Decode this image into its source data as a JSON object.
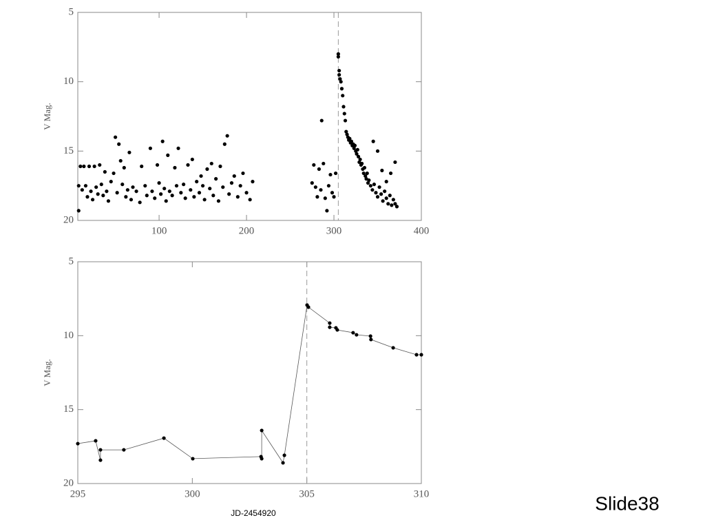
{
  "footer": "Slide38",
  "chart_data": [
    {
      "type": "scatter",
      "ylabel": "V Mag.",
      "color": "#000000",
      "vline": 305,
      "xlim": [
        7,
        400
      ],
      "xticks": [
        100,
        200,
        300,
        400
      ],
      "ylim": [
        20,
        5
      ],
      "yticks": [
        5,
        10,
        15,
        20
      ],
      "x": [
        8,
        8,
        10,
        12,
        14,
        16,
        18,
        20,
        22,
        24,
        26,
        28,
        30,
        32,
        34,
        36,
        38,
        40,
        42,
        45,
        48,
        50,
        52,
        54,
        56,
        58,
        60,
        62,
        64,
        66,
        68,
        70,
        74,
        78,
        80,
        84,
        86,
        90,
        92,
        95,
        98,
        100,
        102,
        104,
        106,
        108,
        110,
        112,
        115,
        118,
        120,
        122,
        125,
        128,
        130,
        133,
        136,
        138,
        140,
        143,
        146,
        148,
        150,
        152,
        155,
        158,
        160,
        162,
        165,
        168,
        170,
        173,
        175,
        178,
        180,
        183,
        186,
        190,
        193,
        196,
        200,
        204,
        207,
        275,
        277,
        279,
        281,
        283,
        285,
        286,
        288,
        290,
        292,
        294,
        296,
        298,
        300,
        302,
        305,
        305,
        306,
        306,
        307,
        308,
        309,
        310,
        311,
        312,
        313,
        314,
        315,
        316,
        317,
        318,
        319,
        320,
        321,
        322,
        323,
        324,
        325,
        326,
        327,
        328,
        329,
        330,
        331,
        332,
        333,
        334,
        335,
        336,
        337,
        338,
        339,
        340,
        342,
        344,
        346,
        348,
        350,
        352,
        354,
        356,
        358,
        360,
        362,
        364,
        366,
        368,
        370,
        372,
        345,
        350,
        355,
        365,
        370,
        360
      ],
      "values": [
        17.5,
        19.3,
        16.1,
        17.8,
        16.1,
        17.5,
        18.3,
        16.1,
        17.9,
        18.5,
        16.1,
        17.6,
        18.1,
        16.0,
        17.4,
        18.2,
        16.5,
        17.9,
        18.6,
        17.2,
        16.6,
        14.0,
        18.0,
        14.5,
        15.7,
        17.4,
        16.2,
        18.3,
        17.8,
        15.1,
        18.5,
        17.6,
        17.9,
        18.7,
        16.1,
        17.5,
        18.2,
        14.8,
        17.9,
        18.4,
        16.0,
        17.3,
        18.1,
        14.3,
        17.7,
        18.6,
        15.3,
        17.9,
        18.2,
        16.2,
        17.5,
        14.8,
        18.0,
        17.4,
        18.4,
        16.0,
        17.8,
        15.6,
        18.3,
        17.2,
        18.0,
        16.8,
        17.5,
        18.5,
        16.3,
        17.7,
        15.9,
        18.2,
        17.0,
        18.6,
        16.1,
        17.6,
        14.5,
        13.9,
        18.1,
        17.3,
        16.8,
        18.3,
        17.5,
        16.6,
        18.0,
        18.5,
        17.2,
        17.3,
        16.0,
        17.6,
        18.3,
        16.3,
        17.8,
        12.8,
        15.9,
        18.4,
        19.3,
        17.5,
        16.7,
        18.0,
        18.3,
        16.6,
        8.0,
        8.2,
        9.2,
        9.5,
        9.8,
        10.0,
        10.5,
        11.0,
        11.8,
        12.3,
        12.8,
        13.6,
        13.8,
        14.0,
        14.2,
        14.1,
        14.4,
        14.3,
        14.6,
        14.5,
        14.8,
        14.6,
        15.0,
        15.2,
        14.9,
        15.4,
        15.8,
        15.6,
        16.0,
        15.9,
        16.3,
        16.6,
        16.2,
        16.8,
        17.0,
        16.6,
        17.3,
        17.1,
        17.5,
        17.8,
        17.4,
        18.0,
        18.3,
        17.6,
        18.1,
        18.6,
        17.9,
        18.4,
        18.8,
        18.2,
        18.9,
        18.5,
        18.8,
        19.0,
        14.3,
        15.0,
        16.4,
        16.6,
        15.8,
        17.2
      ]
    },
    {
      "type": "line",
      "xlabel": "JD-2454920",
      "ylabel": "V Mag.",
      "color": "#000000",
      "vline": 305,
      "xlim": [
        295,
        310
      ],
      "xticks": [
        295,
        300,
        305,
        310
      ],
      "ylim": [
        20,
        5
      ],
      "yticks": [
        5,
        10,
        15,
        20
      ],
      "x": [
        295.0,
        295.78,
        295.99,
        295.99,
        297.01,
        298.76,
        300.02,
        303.0,
        303.03,
        303.03,
        303.96,
        304.02,
        305.01,
        305.07,
        306.0,
        306.0,
        306.27,
        306.33,
        307.02,
        307.17,
        307.78,
        307.8,
        308.77,
        309.79,
        310.0
      ],
      "values": [
        17.3,
        17.11,
        18.42,
        17.72,
        17.72,
        16.93,
        18.32,
        18.18,
        18.32,
        16.41,
        18.6,
        18.09,
        7.93,
        8.07,
        9.15,
        9.43,
        9.47,
        9.61,
        9.8,
        9.94,
        10.03,
        10.26,
        10.82,
        11.29,
        11.29
      ]
    }
  ]
}
